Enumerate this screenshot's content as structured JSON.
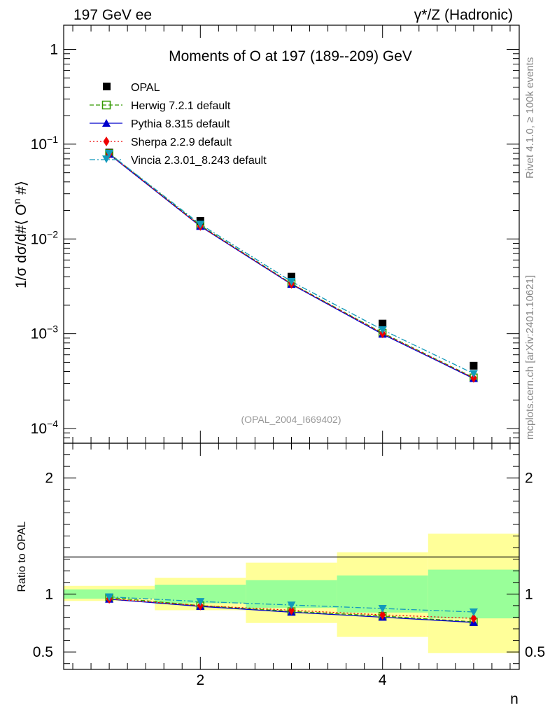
{
  "header": {
    "left": "197 GeV ee",
    "right": "γ*/Z (Hadronic)"
  },
  "side_labels": {
    "rivet": "Rivet 4.1.0, ≥ 100k events",
    "mcplots": "mcplots.cern.ch [arXiv:2401.10621]"
  },
  "chart_data": [
    {
      "type": "line",
      "panel": "main",
      "title": "Moments of O at 197 (189--209) GeV",
      "ylabel": "1/σ  dσ/d#⟨ O^n #⟩",
      "ylabel_parts": {
        "a": "1/σ  dσ/d#⟨ O",
        "sup": "n",
        "b": " #⟩"
      },
      "yscale": "log",
      "ylim": [
        7e-05,
        1.8
      ],
      "xlim": [
        0.5,
        5.5
      ],
      "yticks": [
        {
          "base": "1",
          "exp": "",
          "value": 1
        },
        {
          "base": "10",
          "exp": "−1",
          "value": 0.1
        },
        {
          "base": "10",
          "exp": "−2",
          "value": 0.01
        },
        {
          "base": "10",
          "exp": "−3",
          "value": 0.001
        },
        {
          "base": "10",
          "exp": "−4",
          "value": 0.0001
        }
      ],
      "watermark": "(OPAL_2004_I669402)",
      "x": [
        1,
        2,
        3,
        4,
        5
      ],
      "series": [
        {
          "name": "OPAL",
          "key": "opal",
          "color": "#000000",
          "marker": "square-filled",
          "values": [
            0.0815,
            0.0155,
            0.004,
            0.00128,
            0.00046
          ]
        },
        {
          "name": "Herwig 7.2.1 default",
          "key": "herwig",
          "color": "#339900",
          "marker": "square-open",
          "dash": "6,3",
          "values": [
            0.08,
            0.0139,
            0.00338,
            0.00102,
            0.000345
          ]
        },
        {
          "name": "Pythia 8.315 default",
          "key": "pythia",
          "color": "#0000cc",
          "marker": "triangle-up",
          "dash": "",
          "values": [
            0.0782,
            0.0136,
            0.00332,
            0.00099,
            0.000337
          ]
        },
        {
          "name": "Sherpa 2.2.9 default",
          "key": "sherpa",
          "color": "#ee0000",
          "marker": "diamond",
          "dash": "2,3",
          "values": [
            0.0788,
            0.0137,
            0.00336,
            0.00101,
            0.000342
          ]
        },
        {
          "name": "Vincia 2.3.01_8.243 default",
          "key": "vincia",
          "color": "#1199bb",
          "marker": "triangle-down",
          "dash": "8,3,2,3",
          "values": [
            0.08,
            0.0143,
            0.00356,
            0.0011,
            0.00038
          ]
        }
      ]
    },
    {
      "type": "line",
      "panel": "ratio",
      "ylabel": "Ratio to OPAL",
      "xlabel": "n",
      "xlim": [
        0.5,
        5.5
      ],
      "ylim": [
        0.35,
        2.3
      ],
      "yticks": [
        0.5,
        1,
        2
      ],
      "ytick_labels": [
        "0.5",
        "1",
        "2"
      ],
      "xticks": [
        2,
        4
      ],
      "xtick_labels": [
        "2",
        "4"
      ],
      "bins": [
        [
          0.5,
          1.5
        ],
        [
          1.5,
          2.5
        ],
        [
          2.5,
          3.5
        ],
        [
          3.5,
          4.5
        ],
        [
          4.5,
          5.5
        ]
      ],
      "band_inner": [
        [
          0.96,
          1.04
        ],
        [
          0.92,
          1.08
        ],
        [
          0.88,
          1.12
        ],
        [
          0.84,
          1.16
        ],
        [
          0.79,
          1.21
        ]
      ],
      "band_outer": [
        [
          0.94,
          1.07
        ],
        [
          0.86,
          1.14
        ],
        [
          0.75,
          1.27
        ],
        [
          0.63,
          1.36
        ],
        [
          0.49,
          1.52
        ]
      ],
      "x": [
        1,
        2,
        3,
        4,
        5
      ],
      "series": [
        {
          "name": "Herwig 7.2.1 default",
          "key": "herwig",
          "color": "#339900",
          "marker": "square-open",
          "dash": "6,3",
          "values": [
            0.97,
            0.9,
            0.85,
            0.81,
            0.76
          ]
        },
        {
          "name": "Pythia 8.315 default",
          "key": "pythia",
          "color": "#0000cc",
          "marker": "triangle-up",
          "dash": "",
          "values": [
            0.955,
            0.893,
            0.843,
            0.8,
            0.755
          ]
        },
        {
          "name": "Sherpa 2.2.9 default",
          "key": "sherpa",
          "color": "#ee0000",
          "marker": "diamond",
          "dash": "2,3",
          "values": [
            0.958,
            0.9,
            0.86,
            0.82,
            0.79
          ]
        },
        {
          "name": "Vincia 2.3.01_8.243 default",
          "key": "vincia",
          "color": "#1199bb",
          "marker": "triangle-down",
          "dash": "8,3,2,3",
          "values": [
            0.975,
            0.935,
            0.905,
            0.875,
            0.845
          ]
        }
      ]
    }
  ]
}
